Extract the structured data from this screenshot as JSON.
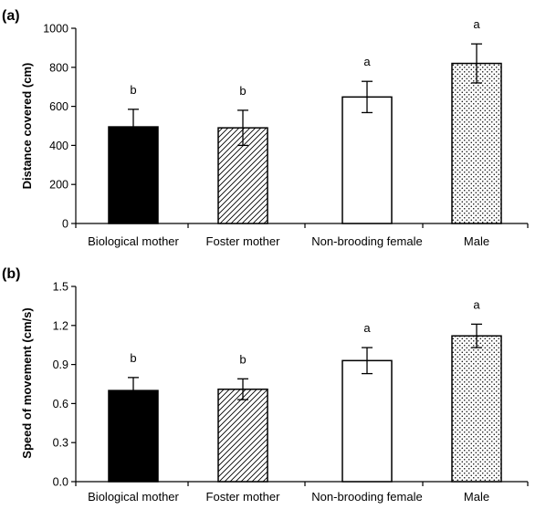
{
  "figure": {
    "panels": [
      {
        "label": "(a)",
        "ylabel": "Distance covered (cm)",
        "yticks": [
          "0",
          "200",
          "400",
          "600",
          "800",
          "1000"
        ]
      },
      {
        "label": "(b)",
        "ylabel": "Speed of movement (cm/s)",
        "yticks": [
          "0.0",
          "0.3",
          "0.6",
          "0.9",
          "1.2",
          "1.5"
        ]
      }
    ]
  },
  "colors": {
    "biological_mother": "#000000",
    "foster_mother": "#ffffff",
    "non_brooding_female": "#ffffff",
    "male": "#ffffff",
    "stroke": "#000000"
  },
  "chart_data": [
    {
      "type": "bar",
      "title": "(a)",
      "xlabel": "",
      "ylabel": "Distance covered (cm)",
      "ylim": [
        0,
        1000
      ],
      "yticks": [
        0,
        200,
        400,
        600,
        800,
        1000
      ],
      "categories": [
        "Biological mother",
        "Foster mother",
        "Non-brooding female",
        "Male"
      ],
      "values": [
        495,
        490,
        648,
        820
      ],
      "error": [
        90,
        90,
        80,
        100
      ],
      "significance": [
        "b",
        "b",
        "a",
        "a"
      ],
      "patterns": [
        "solid-black",
        "diagonal-hatch",
        "white",
        "dots"
      ],
      "grid": false,
      "legend": "none"
    },
    {
      "type": "bar",
      "title": "(b)",
      "xlabel": "",
      "ylabel": "Speed of movement (cm/s)",
      "ylim": [
        0,
        1.5
      ],
      "yticks": [
        0.0,
        0.3,
        0.6,
        0.9,
        1.2,
        1.5
      ],
      "categories": [
        "Biological mother",
        "Foster mother",
        "Non-brooding female",
        "Male"
      ],
      "values": [
        0.7,
        0.71,
        0.93,
        1.12
      ],
      "error": [
        0.1,
        0.08,
        0.1,
        0.09
      ],
      "significance": [
        "b",
        "b",
        "a",
        "a"
      ],
      "patterns": [
        "solid-black",
        "diagonal-hatch",
        "white",
        "dots"
      ],
      "grid": false,
      "legend": "none"
    }
  ]
}
